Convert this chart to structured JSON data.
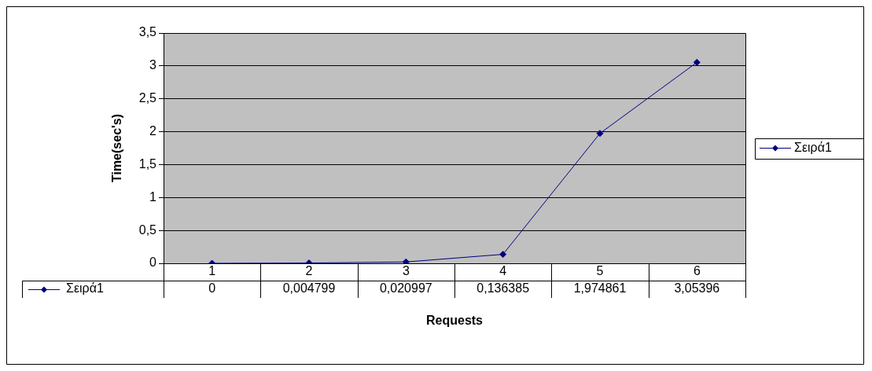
{
  "chart_data": {
    "type": "line",
    "xlabel": "Requests",
    "ylabel": "Time(sec's)",
    "categories": [
      "1",
      "2",
      "3",
      "4",
      "5",
      "6"
    ],
    "series": [
      {
        "name": "Σειρά1",
        "color": "#000080",
        "values": [
          0,
          0.004799,
          0.020997,
          0.136385,
          1.974861,
          3.05396
        ],
        "value_labels": [
          "0",
          "0,004799",
          "0,020997",
          "0,136385",
          "1,974861",
          "3,05396"
        ]
      }
    ],
    "ylim": [
      0,
      3.5
    ],
    "yticks": [
      0,
      {
        "value": 0.5,
        "label": "0,5"
      },
      1,
      {
        "value": 1.5,
        "label": "1,5"
      },
      2,
      {
        "value": 2.5,
        "label": "2,5"
      },
      3,
      {
        "value": 3.5,
        "label": "3,5"
      }
    ],
    "grid": "y",
    "legend": "right",
    "marker": "diamond",
    "line_style": "solid"
  }
}
